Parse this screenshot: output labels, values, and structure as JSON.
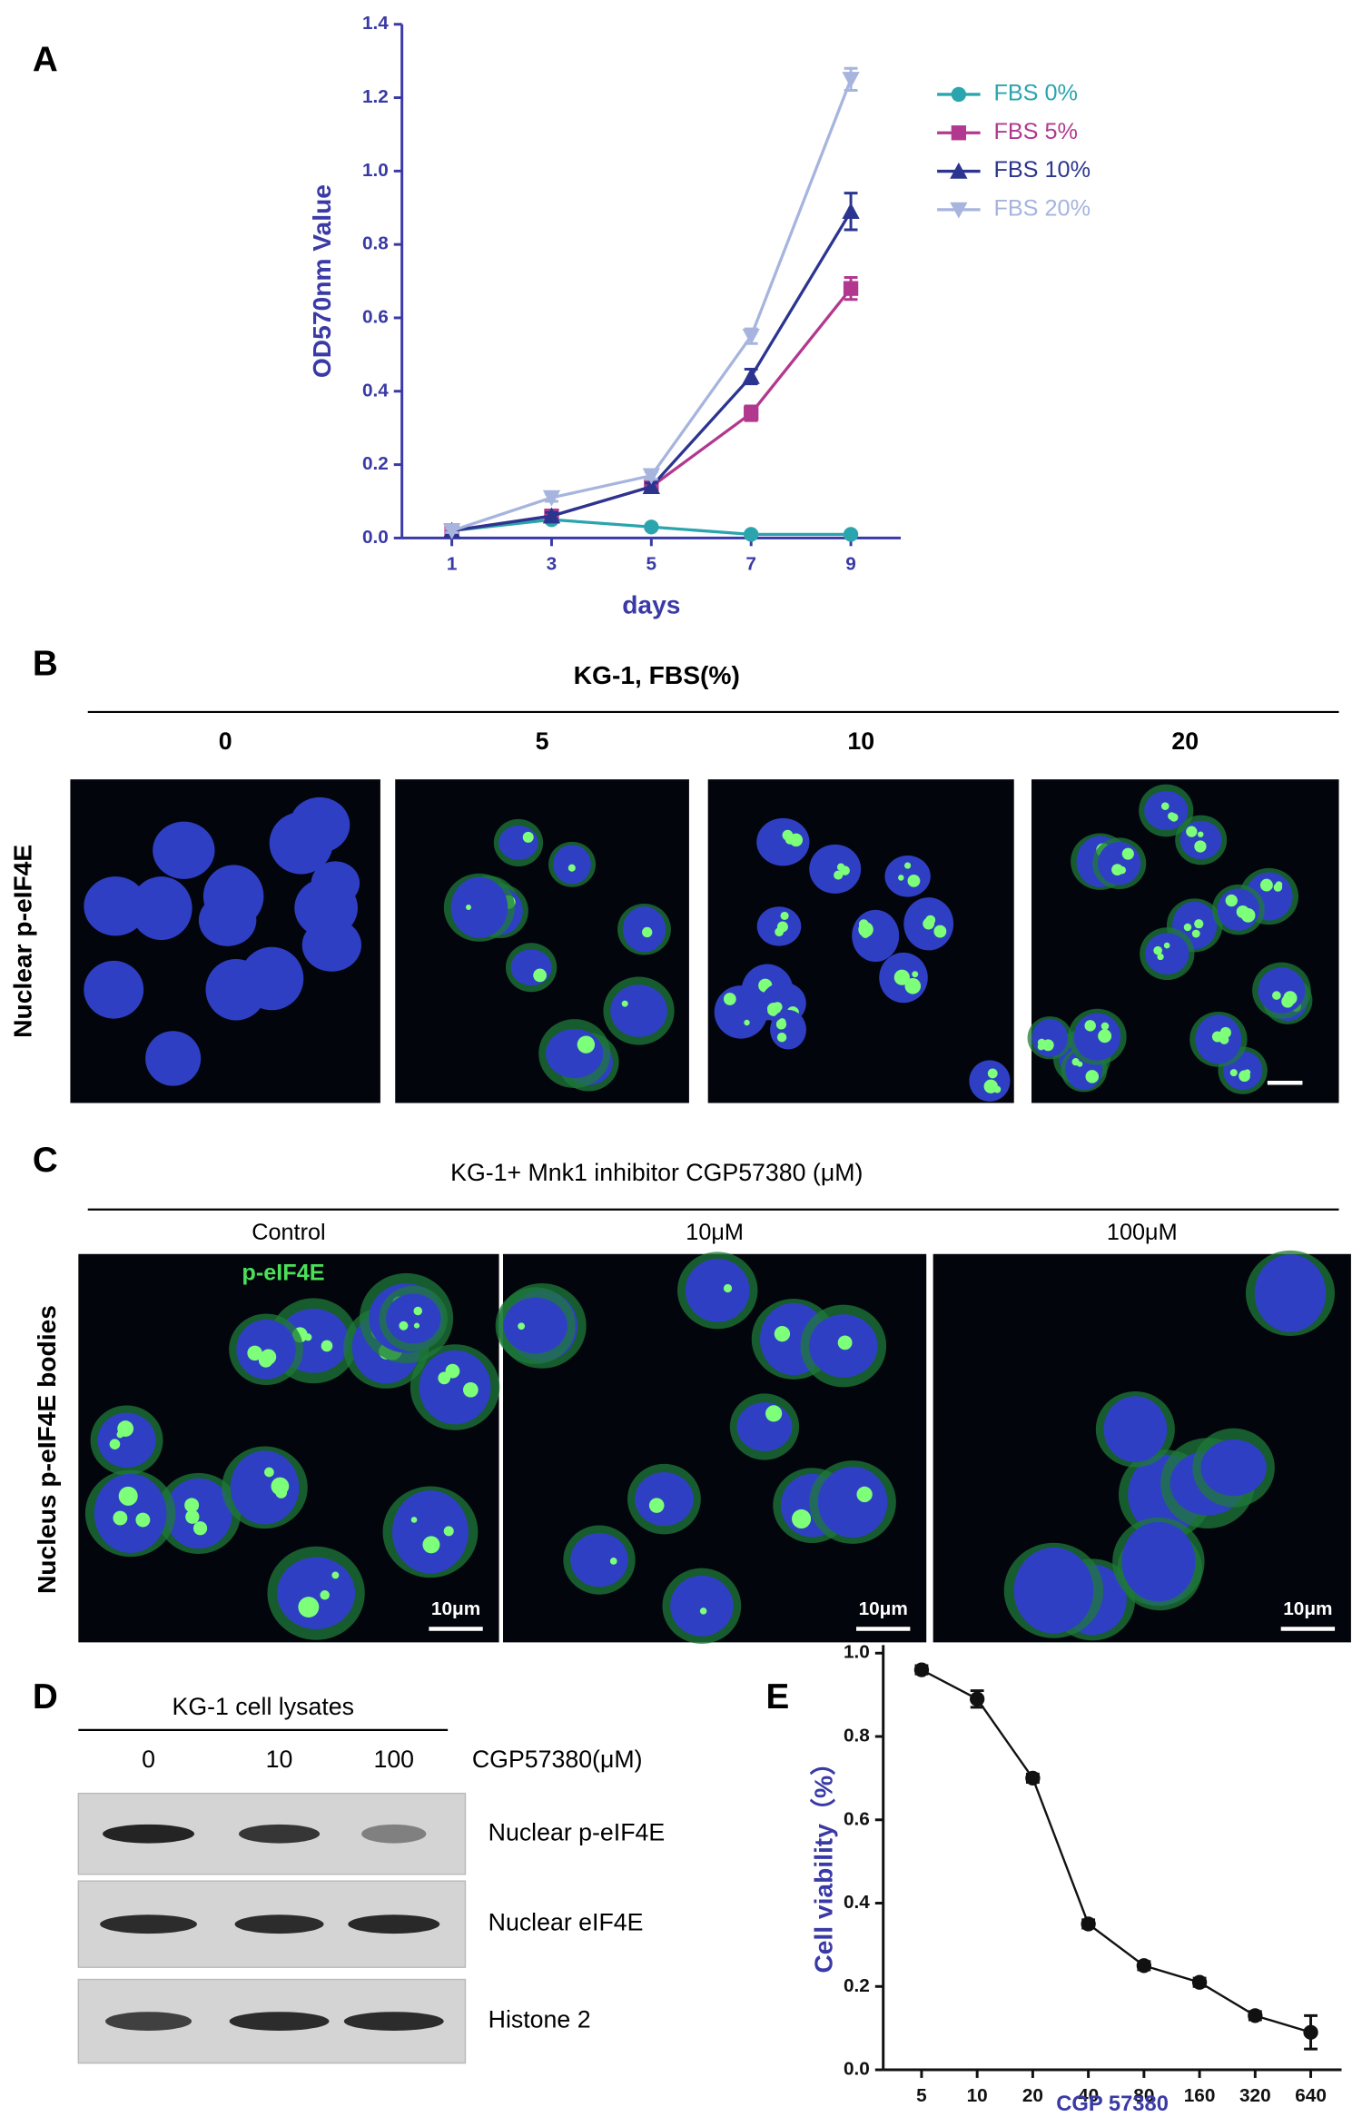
{
  "chart_data": [
    {
      "type": "line",
      "panel": "A",
      "x_label": "days",
      "y_label": "OD570nm Value",
      "x": [
        1,
        3,
        5,
        7,
        9
      ],
      "xlim": [
        0,
        10
      ],
      "xticks": [
        1,
        3,
        5,
        7,
        9
      ],
      "ylim": [
        0,
        1.4
      ],
      "yticks": [
        {
          "value": 0,
          "label": "0.0"
        },
        0.2,
        0.4,
        0.6,
        0.8,
        {
          "value": 1,
          "label": "1.0"
        },
        1.2,
        1.4
      ],
      "legend": "right",
      "series": [
        {
          "name": "FBS 0%",
          "color": "#2aa5ad",
          "marker": "circle",
          "values": [
            0.02,
            0.05,
            0.03,
            0.01,
            0.01
          ],
          "errors": [
            0.005,
            0.005,
            0.005,
            0.005,
            0.005
          ]
        },
        {
          "name": "FBS 5%",
          "color": "#b2388f",
          "marker": "square",
          "values": [
            0.02,
            0.06,
            0.14,
            0.34,
            0.68
          ],
          "errors": [
            0.005,
            0.01,
            0.01,
            0.02,
            0.03
          ]
        },
        {
          "name": "FBS 10%",
          "color": "#2b3590",
          "marker": "triangle",
          "values": [
            0.02,
            0.06,
            0.14,
            0.44,
            0.89
          ],
          "errors": [
            0.005,
            0.01,
            0.01,
            0.02,
            0.05
          ]
        },
        {
          "name": "FBS 20%",
          "color": "#a6b4de",
          "marker": "triangle-down",
          "values": [
            0.02,
            0.11,
            0.17,
            0.55,
            1.25
          ],
          "errors": [
            0.005,
            0.01,
            0.01,
            0.02,
            0.03
          ]
        }
      ]
    },
    {
      "type": "line",
      "panel": "E",
      "x_label": "CGP 57380",
      "y_label": "Cell viability（%）",
      "x": [
        5,
        10,
        20,
        40,
        80,
        160,
        320,
        640
      ],
      "xscale": "log",
      "xlim": [
        3.1,
        940
      ],
      "xticks": [
        5,
        10,
        20,
        40,
        80,
        160,
        320,
        640
      ],
      "ylim": [
        0,
        1
      ],
      "yticks": [
        {
          "value": 0,
          "label": "0.0"
        },
        0.2,
        0.4,
        0.6,
        0.8,
        {
          "value": 1,
          "label": "1.0"
        }
      ],
      "series": [
        {
          "color": "#111111",
          "marker": "circle",
          "values": [
            0.96,
            0.89,
            0.7,
            0.35,
            0.25,
            0.21,
            0.13,
            0.09
          ],
          "errors": [
            0.01,
            0.02,
            0.01,
            0.01,
            0.01,
            0.01,
            0.01,
            0.04
          ]
        }
      ]
    }
  ],
  "panel_b": {
    "panel": "B",
    "title": "KG-1, FBS(%)",
    "columns": [
      "0",
      "5",
      "10",
      "20"
    ],
    "row_label": "Nuclear  p-eIF4E"
  },
  "panel_c": {
    "panel": "C",
    "title": "KG-1+ Mnk1 inhibitor CGP57380 (μM)",
    "columns": [
      "Control",
      "10μM",
      "100μM"
    ],
    "stain_label": "p-eIF4E",
    "scale_bars": [
      "10μm",
      "10μm",
      "10μm"
    ],
    "row_label": "Nucleus p-eIF4E bodies"
  },
  "panel_d": {
    "panel": "D",
    "header": "KG-1 cell lysates",
    "lanes": [
      "0",
      "10",
      "100"
    ],
    "lane_title": "CGP57380(μM)",
    "rows": [
      "Nuclear p-eIF4E",
      "Nuclear eIF4E",
      "Histone 2"
    ]
  }
}
